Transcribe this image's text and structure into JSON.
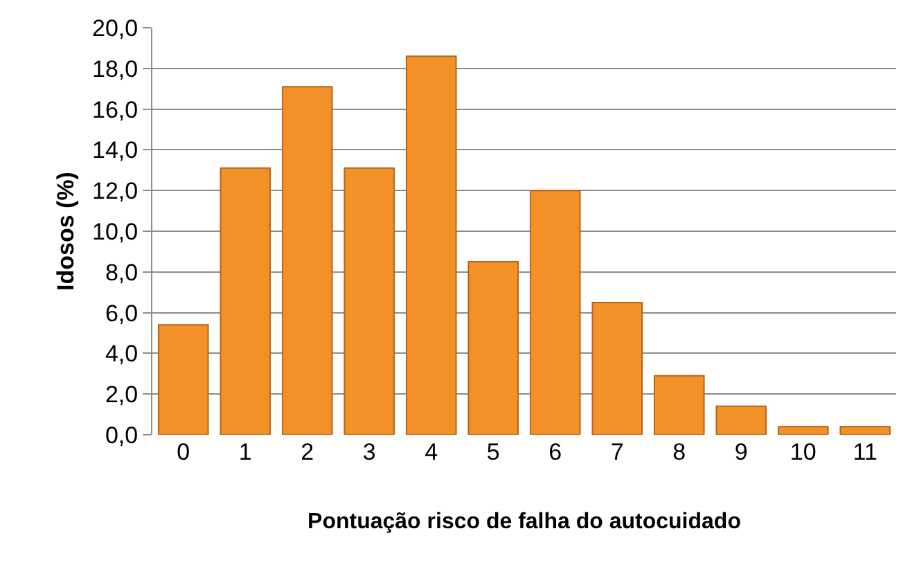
{
  "chart_data": {
    "type": "bar",
    "xlabel": "Pontuação risco de falha do autocuidado",
    "ylabel": "Idosos (%)",
    "categories": [
      "0",
      "1",
      "2",
      "3",
      "4",
      "5",
      "6",
      "7",
      "8",
      "9",
      "10",
      "11"
    ],
    "values": [
      5.4,
      13.1,
      17.1,
      13.1,
      18.6,
      8.5,
      12.0,
      6.5,
      2.9,
      1.4,
      0.4,
      0.4
    ],
    "color": "#f39028",
    "ylim": [
      0,
      20
    ],
    "yticks": [
      {
        "value": 0,
        "label": "0,0"
      },
      {
        "value": 2,
        "label": "2,0"
      },
      {
        "value": 4,
        "label": "4,0"
      },
      {
        "value": 6,
        "label": "6,0"
      },
      {
        "value": 8,
        "label": "8,0"
      },
      {
        "value": 10,
        "label": "10,0"
      },
      {
        "value": 12,
        "label": "12,0"
      },
      {
        "value": 14,
        "label": "14,0"
      },
      {
        "value": 16,
        "label": "16,0"
      },
      {
        "value": 18,
        "label": "18,0"
      },
      {
        "value": 20,
        "label": "20,0"
      }
    ],
    "grid": "y"
  }
}
